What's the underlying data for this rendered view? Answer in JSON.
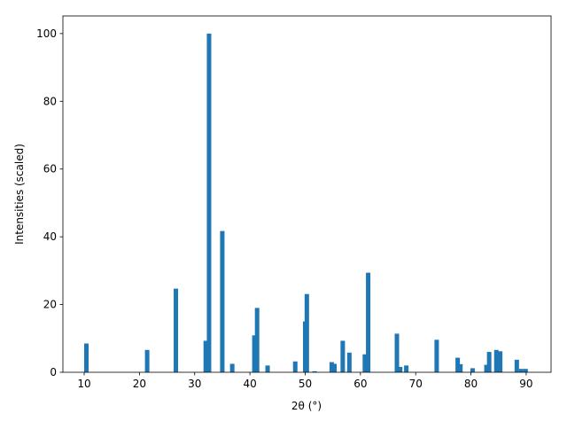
{
  "chart_data": {
    "type": "bar",
    "x_label": "2θ (°)",
    "y_label": "Intensities (scaled)",
    "x": [
      10.4,
      21.4,
      26.6,
      32.0,
      32.6,
      35.0,
      36.8,
      40.8,
      41.3,
      43.2,
      48.2,
      50.0,
      50.3,
      51.7,
      54.8,
      55.3,
      56.8,
      58.0,
      60.8,
      61.4,
      66.6,
      67.2,
      68.3,
      73.8,
      77.6,
      78.1,
      80.3,
      82.8,
      83.3,
      84.6,
      85.3,
      88.3,
      89.1,
      89.9
    ],
    "values": [
      8.5,
      6.6,
      24.7,
      9.3,
      100,
      41.7,
      2.5,
      10.9,
      19,
      2,
      3.2,
      15,
      23.1,
      0.3,
      3,
      2.5,
      9.3,
      5.8,
      5.3,
      29.4,
      11.4,
      1.6,
      2,
      9.6,
      4.3,
      2.4,
      1.2,
      2.2,
      6,
      6.6,
      6.2,
      3.7,
      1,
      1
    ],
    "color": "#1f77b4",
    "xlim": [
      6.15,
      94.5
    ],
    "xticks": [
      10,
      20,
      30,
      40,
      50,
      60,
      70,
      80,
      90
    ],
    "ylim": [
      0,
      105.2
    ],
    "yticks": [
      0,
      20,
      40,
      60,
      80,
      100
    ]
  }
}
